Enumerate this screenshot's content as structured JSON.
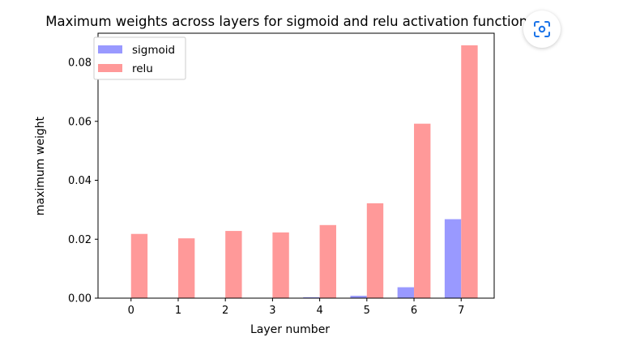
{
  "chart_data": {
    "type": "bar",
    "title": "Maximum weights across layers for sigmoid and relu activation functions",
    "xlabel": "Layer number",
    "ylabel": "maximum weight",
    "categories": [
      "0",
      "1",
      "2",
      "3",
      "4",
      "5",
      "6",
      "7"
    ],
    "series": [
      {
        "name": "sigmoid",
        "color": "#9999ff",
        "values": [
          0.0,
          0.0,
          0.0,
          0.0,
          0.0003,
          0.0008,
          0.0037,
          0.0268
        ]
      },
      {
        "name": "relu",
        "color": "#ff9999",
        "values": [
          0.0218,
          0.0203,
          0.0228,
          0.0223,
          0.0248,
          0.0322,
          0.0592,
          0.0858
        ]
      }
    ],
    "ylim": [
      0,
      0.0899
    ],
    "yticks": [
      "0.00",
      "0.02",
      "0.04",
      "0.06",
      "0.08"
    ],
    "ytick_values": [
      0,
      0.02,
      0.04,
      0.06,
      0.08
    ],
    "legend_position": "top-left",
    "grid": false
  },
  "overlay": {
    "lens_icon": "google-lens-icon"
  }
}
